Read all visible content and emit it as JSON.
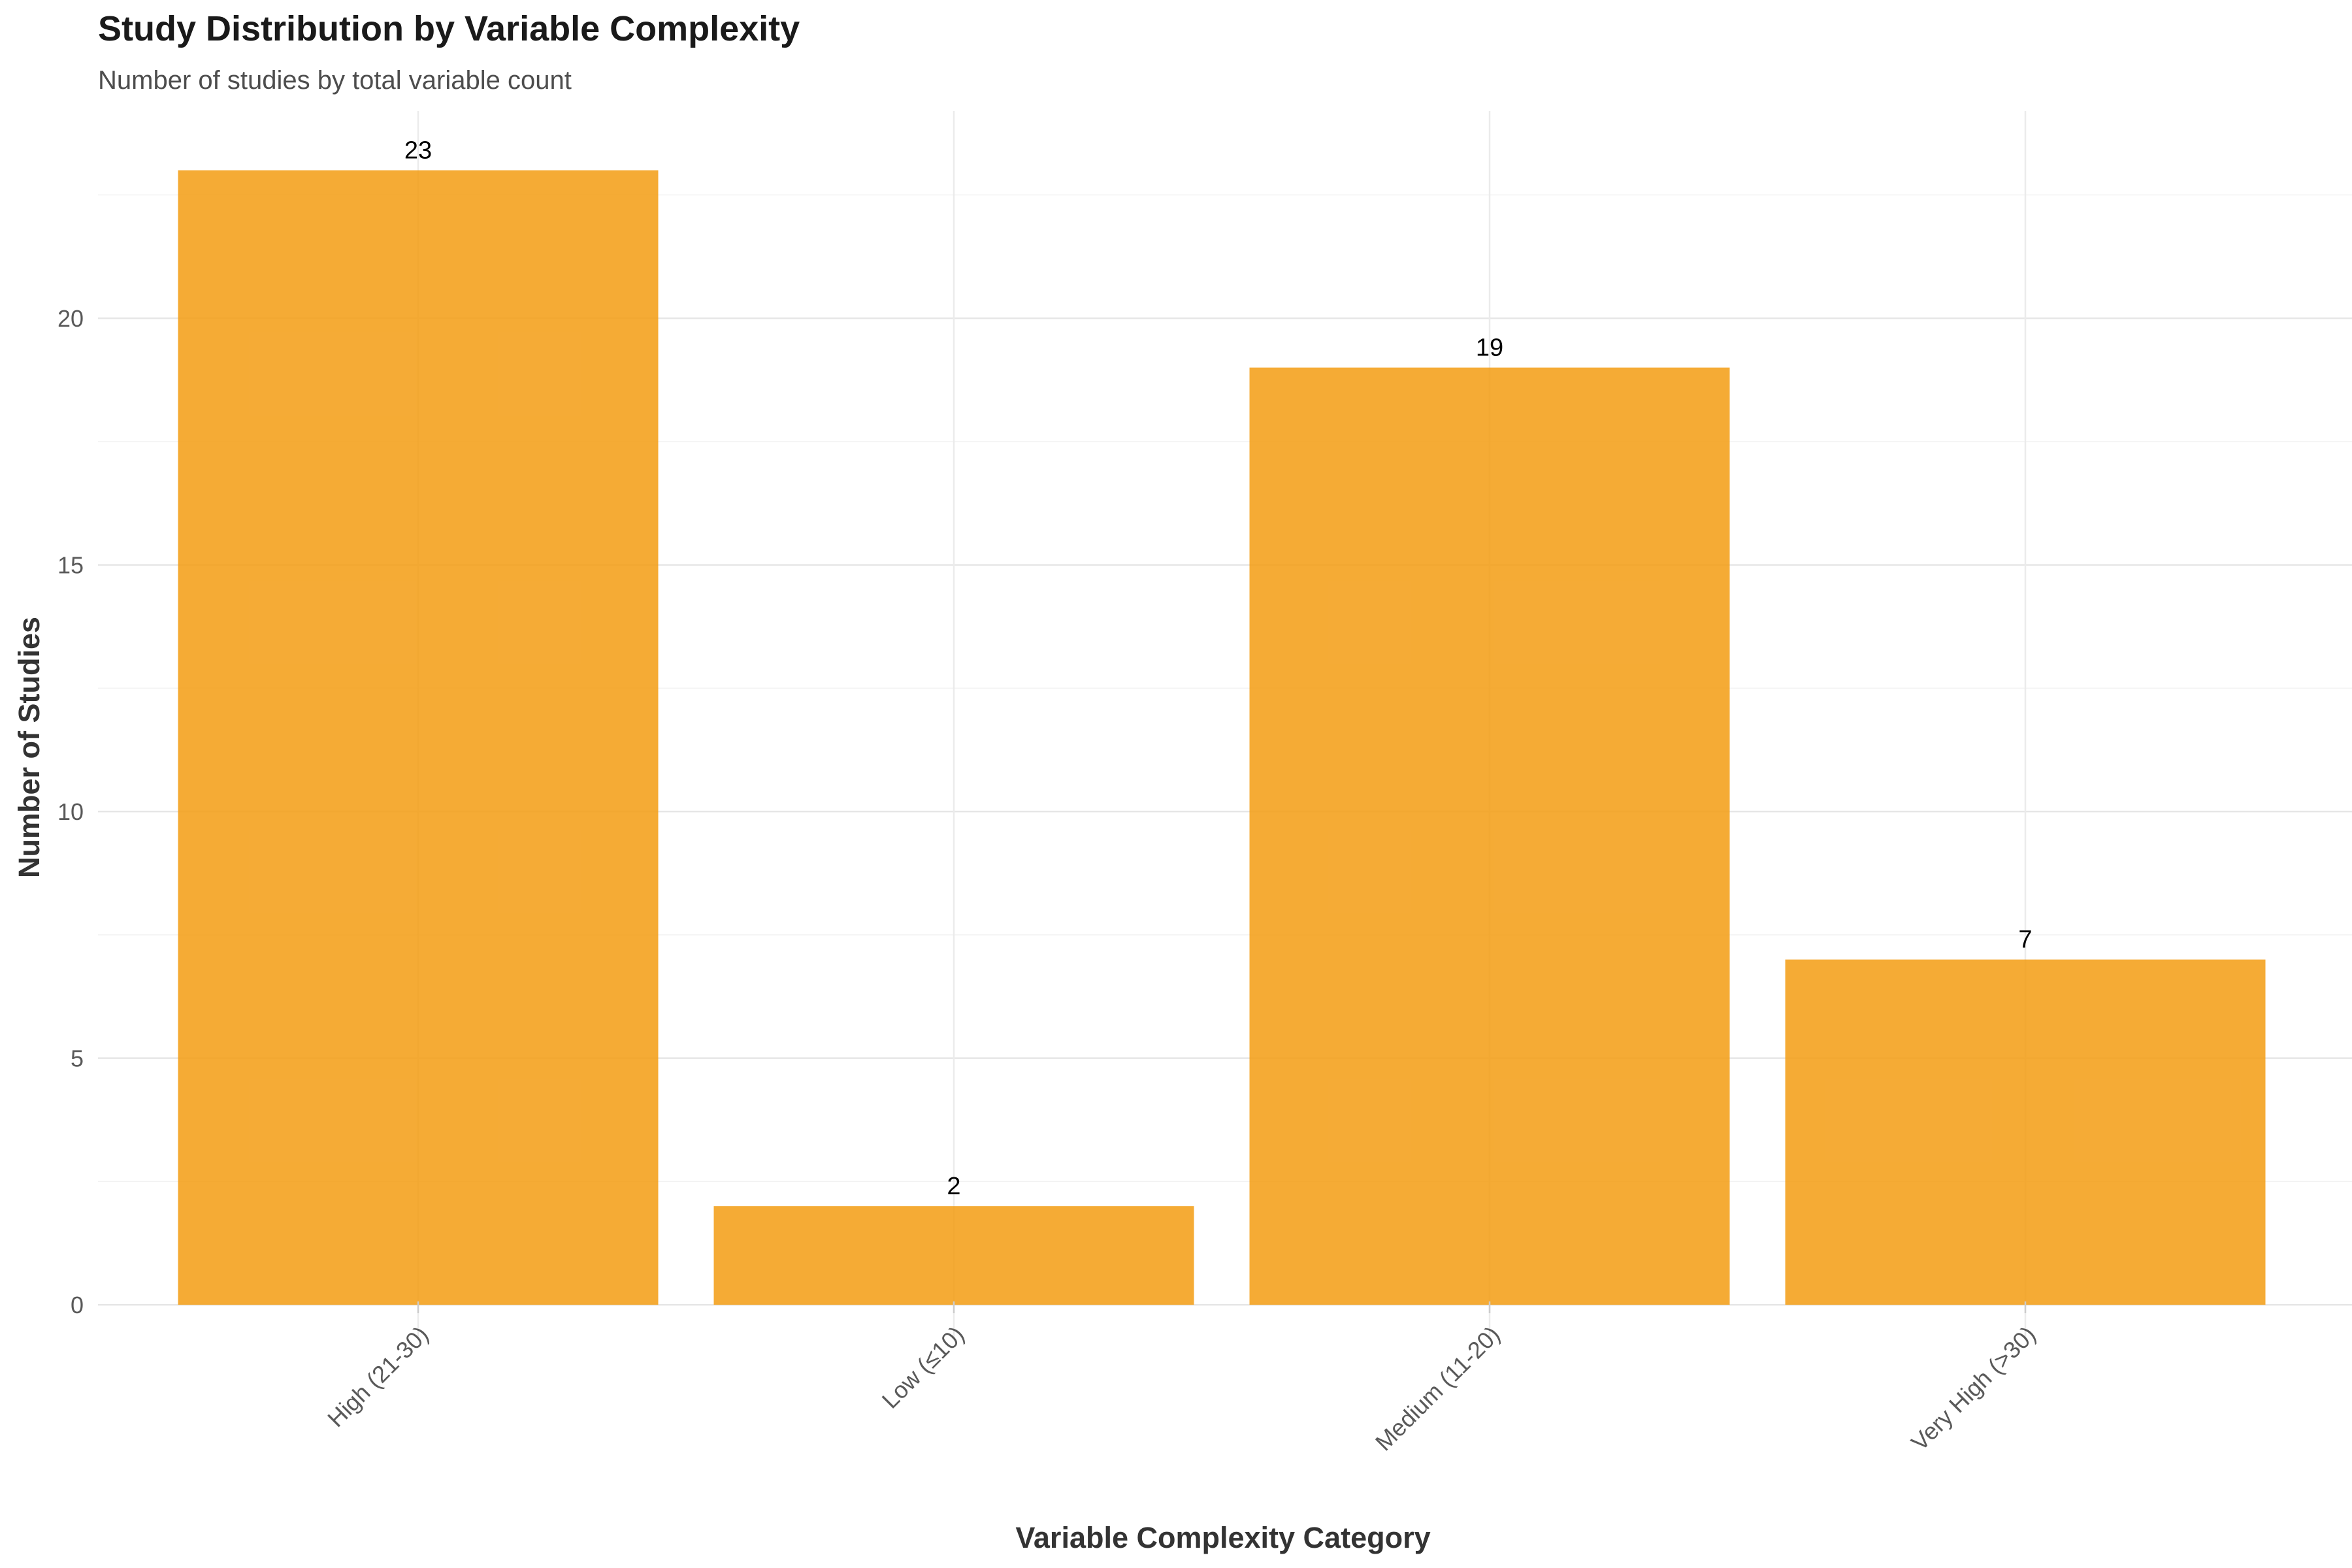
{
  "chart_data": {
    "type": "bar",
    "title": "Study Distribution by Variable Complexity",
    "subtitle": "Number of studies by total variable count",
    "xlabel": "Variable Complexity Category",
    "ylabel": "Number of Studies",
    "categories": [
      "High (21-30)",
      "Low (≤10)",
      "Medium (11-20)",
      "Very High (>30)"
    ],
    "values": [
      23,
      2,
      19,
      7
    ],
    "data_labels": [
      "23",
      "2",
      "19",
      "7"
    ],
    "yticks": [
      0,
      5,
      10,
      15,
      20
    ],
    "ytick_labels": [
      "0",
      "5",
      "10",
      "15",
      "20"
    ],
    "ylim": [
      -0.7,
      24.2
    ],
    "grid": true,
    "legend": "none",
    "bar_color": "#f39c12",
    "bar_opacity": 0.85,
    "xtick_rotation_deg": 45
  }
}
